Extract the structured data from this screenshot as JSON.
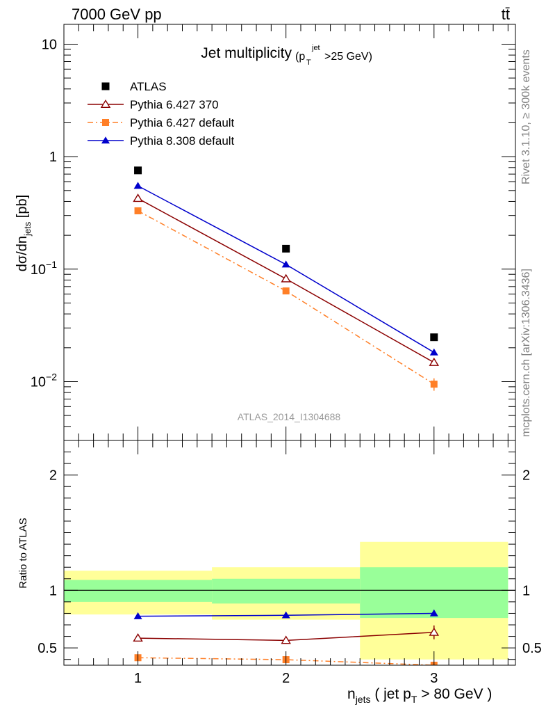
{
  "header": {
    "left": "7000 GeV pp",
    "right": "tt̄"
  },
  "side": {
    "rivet": "Rivet 3.1.10, ≥ 300k events",
    "mcplots": "mcplots.cern.ch [arXiv:1306.3436]"
  },
  "analysis_id": "ATLAS_2014_I1304688",
  "chart_data": [
    {
      "type": "scatter",
      "title": "Jet multiplicity",
      "title_sub": "(p_T^jet >25 GeV)",
      "ylabel": "dσ/dn_jets [pb]",
      "yscale": "log",
      "ylim": [
        0.003,
        15
      ],
      "xlim": [
        0.5,
        3.55
      ],
      "x": [
        1,
        2,
        3
      ],
      "x_ticks": [
        1,
        2,
        3
      ],
      "y_tick_labels": [
        "10",
        "1",
        "10⁻¹",
        "10⁻²"
      ],
      "legend_position": "top-left",
      "series": [
        {
          "name": "ATLAS",
          "color": "#000000",
          "marker": "square",
          "values": [
            0.755,
            0.152,
            0.0248
          ]
        },
        {
          "name": "Pythia 6.427 370",
          "color": "#8b0000",
          "marker": "open-triangle",
          "line": "solid",
          "values": [
            0.425,
            0.082,
            0.0148
          ]
        },
        {
          "name": "Pythia 6.427 default",
          "color": "#ff7f27",
          "marker": "square",
          "line": "dash-dot",
          "values": [
            0.33,
            0.064,
            0.0095
          ],
          "errors": [
            0.0,
            0.0,
            0.0012
          ]
        },
        {
          "name": "Pythia 8.308 default",
          "color": "#0000cc",
          "marker": "triangle",
          "line": "solid",
          "values": [
            0.55,
            0.11,
            0.0182
          ]
        }
      ]
    },
    {
      "type": "scatter",
      "ylabel": "Ratio to ATLAS",
      "xlabel": "n_jets ( jet p_T > 80 GeV )",
      "ylim": [
        0.35,
        2.3
      ],
      "xlim": [
        0.5,
        3.55
      ],
      "y_ticks": [
        0.5,
        1,
        2
      ],
      "x_ticks": [
        1,
        2,
        3
      ],
      "reference": 1,
      "bands": [
        {
          "xlo": 0.5,
          "xhi": 1.5,
          "inner": [
            0.9,
            1.09
          ],
          "outer": [
            0.79,
            1.17
          ]
        },
        {
          "xlo": 1.5,
          "xhi": 2.5,
          "inner": [
            0.885,
            1.1
          ],
          "outer": [
            0.745,
            1.2
          ]
        },
        {
          "xlo": 2.5,
          "xhi": 3.5,
          "inner": [
            0.76,
            1.2
          ],
          "outer": [
            0.4,
            1.42
          ]
        }
      ],
      "band_colors": {
        "inner": "#99ff99",
        "outer": "#ffff99"
      },
      "series": [
        {
          "name": "Pythia 6.427 370",
          "color": "#8b0000",
          "marker": "open-triangle",
          "line": "solid",
          "values": [
            0.585,
            0.565,
            0.635
          ],
          "errors": [
            0.01,
            0.02,
            0.06
          ]
        },
        {
          "name": "Pythia 6.427 default",
          "color": "#ff7f27",
          "marker": "square",
          "line": "dash-dot",
          "values": [
            0.415,
            0.398,
            0.35
          ],
          "errors": [
            0.0,
            0.02,
            0.0
          ]
        },
        {
          "name": "Pythia 8.308 default",
          "color": "#0000cc",
          "marker": "triangle",
          "line": "solid",
          "values": [
            0.775,
            0.783,
            0.8
          ],
          "errors": [
            0.0,
            0.0,
            0.02
          ]
        }
      ]
    }
  ]
}
